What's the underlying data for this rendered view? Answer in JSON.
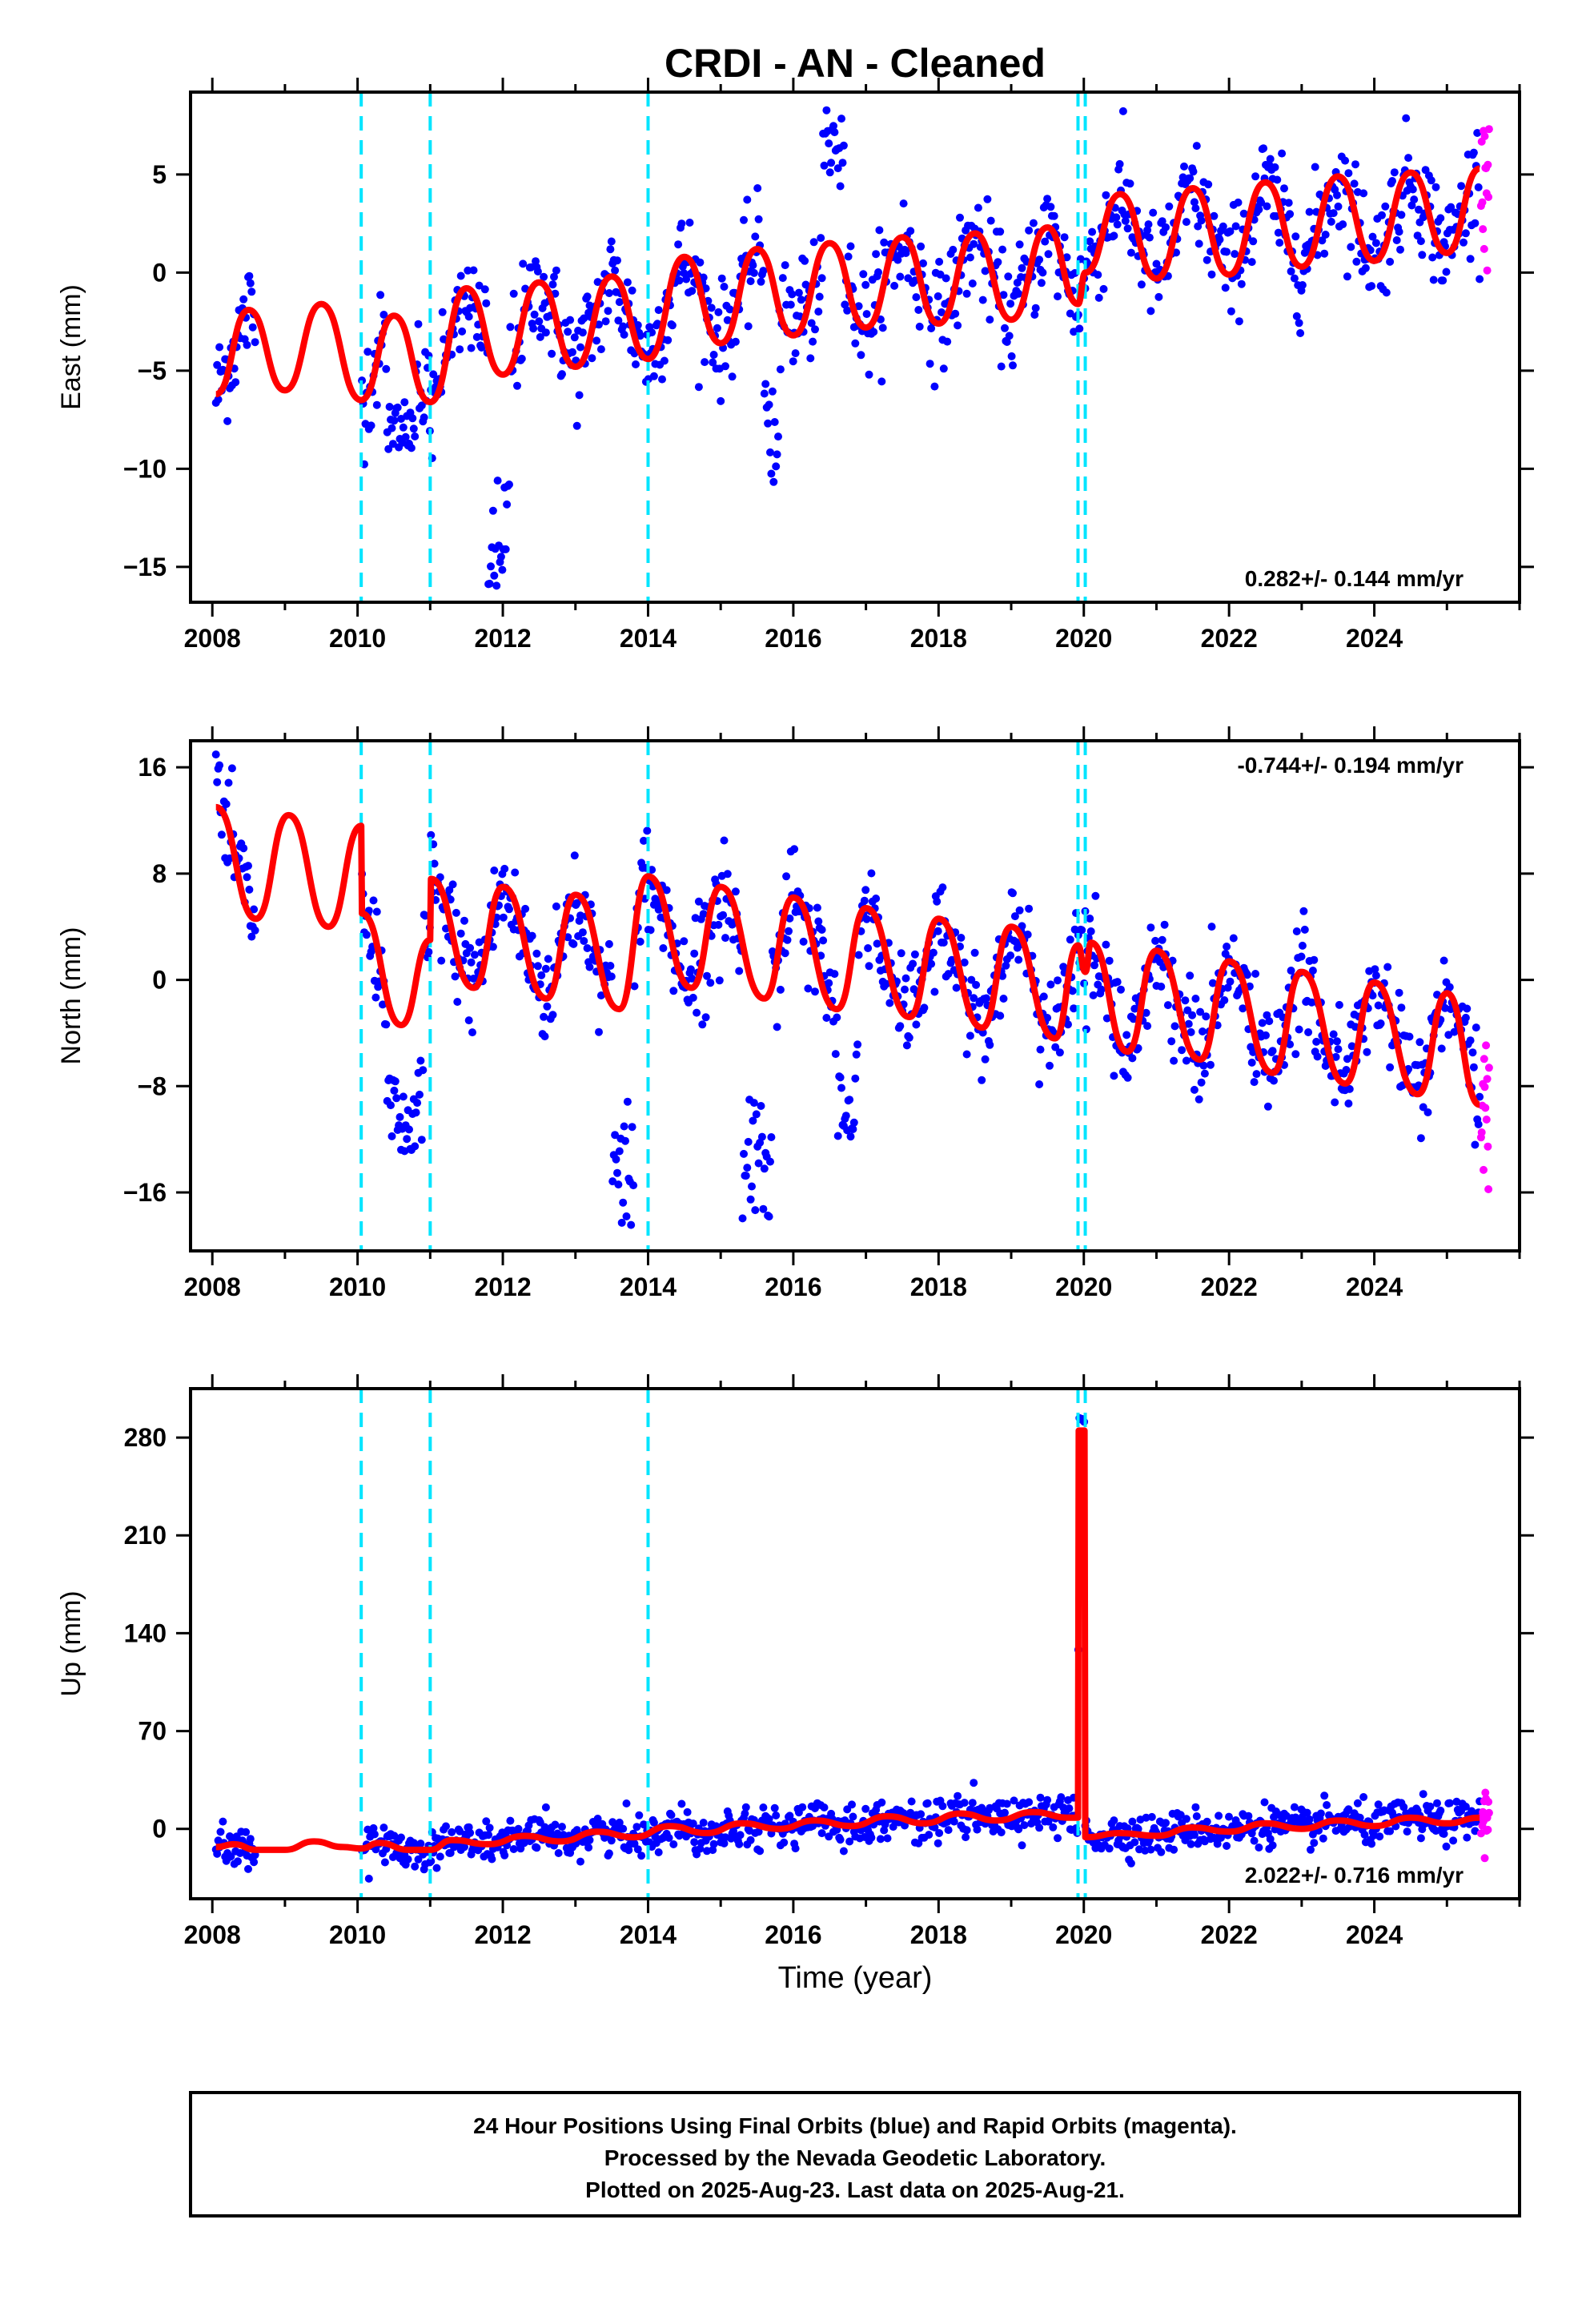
{
  "title": "CRDI  - AN - Cleaned",
  "xlabel": "Time (year)",
  "footer": {
    "line1": "24 Hour Positions Using Final Orbits (blue) and Rapid Orbits (magenta).",
    "line2": "Processed by the Nevada Geodetic Laboratory.",
    "line3": "Plotted on 2025-Aug-23. Last data on 2025-Aug-21."
  },
  "colors": {
    "final": "#0000ff",
    "rapid": "#ff00ff",
    "model": "#ff0000",
    "steps": "#00e5ff"
  },
  "chart_data": [
    {
      "type": "scatter",
      "component": "east",
      "ylabel": "East (mm)",
      "rate_label": "0.282+/- 0.144 mm/yr",
      "xlim": [
        2007.7,
        2026.0
      ],
      "ylim": [
        -16.8,
        9.2
      ],
      "x_ticks": [
        2008,
        2010,
        2012,
        2014,
        2016,
        2018,
        2020,
        2022,
        2024
      ],
      "y_ticks": [
        -15,
        -10,
        -5,
        0,
        5
      ],
      "step_epochs": [
        2010.05,
        2011.0,
        2014.0,
        2019.92,
        2020.02
      ],
      "data_span": [
        2008.05,
        2025.45
      ],
      "gaps": [
        [
          2008.6,
          2010.05
        ]
      ],
      "rapid_span": [
        2025.47,
        2025.58
      ],
      "model_points": [
        [
          2008.05,
          -6.2
        ],
        [
          2008.5,
          -1.9
        ],
        [
          2009.0,
          -6.0
        ],
        [
          2009.5,
          -1.6
        ],
        [
          2010.05,
          -6.5
        ],
        [
          2010.5,
          -2.2
        ],
        [
          2011.0,
          -6.6
        ],
        [
          2011.5,
          -0.8
        ],
        [
          2012.0,
          -5.2
        ],
        [
          2012.5,
          -0.5
        ],
        [
          2013.0,
          -4.8
        ],
        [
          2013.5,
          -0.2
        ],
        [
          2014.0,
          -4.4
        ],
        [
          2014.5,
          0.8
        ],
        [
          2015.0,
          -3.6
        ],
        [
          2015.5,
          1.2
        ],
        [
          2016.0,
          -3.2
        ],
        [
          2016.5,
          1.5
        ],
        [
          2017.0,
          -2.8
        ],
        [
          2017.5,
          1.8
        ],
        [
          2018.0,
          -2.6
        ],
        [
          2018.5,
          2.0
        ],
        [
          2019.0,
          -2.4
        ],
        [
          2019.5,
          2.3
        ],
        [
          2019.92,
          -1.6
        ],
        [
          2020.02,
          0.0
        ],
        [
          2020.5,
          4.0
        ],
        [
          2021.0,
          -0.3
        ],
        [
          2021.5,
          4.3
        ],
        [
          2022.0,
          -0.1
        ],
        [
          2022.5,
          4.6
        ],
        [
          2023.0,
          0.3
        ],
        [
          2023.5,
          4.9
        ],
        [
          2024.0,
          0.6
        ],
        [
          2024.5,
          5.1
        ],
        [
          2025.0,
          1.0
        ],
        [
          2025.45,
          5.3
        ]
      ],
      "scatter_noise": 1.4,
      "excursions": [
        [
          2011.8,
          2012.1,
          -16.0
        ],
        [
          2010.4,
          2010.8,
          -9.0
        ],
        [
          2015.6,
          2015.8,
          -11.0
        ],
        [
          2016.4,
          2016.7,
          8.5
        ]
      ]
    },
    {
      "type": "scatter",
      "component": "north",
      "ylabel": "North (mm)",
      "rate_label": "-0.744+/- 0.194 mm/yr",
      "xlim": [
        2007.7,
        2026.0
      ],
      "ylim": [
        -20.4,
        18.0
      ],
      "x_ticks": [
        2008,
        2010,
        2012,
        2014,
        2016,
        2018,
        2020,
        2022,
        2024
      ],
      "y_ticks": [
        -16,
        -8,
        0,
        8,
        16
      ],
      "step_epochs": [
        2010.05,
        2011.0,
        2014.0,
        2019.92,
        2020.02
      ],
      "data_span": [
        2008.05,
        2025.45
      ],
      "gaps": [
        [
          2008.6,
          2010.05
        ]
      ],
      "rapid_span": [
        2025.47,
        2025.58
      ],
      "model_points": [
        [
          2008.05,
          13.0
        ],
        [
          2008.6,
          4.6
        ],
        [
          2009.05,
          12.4
        ],
        [
          2009.6,
          4.0
        ],
        [
          2010.05,
          11.6
        ],
        [
          2010.06,
          5.0
        ],
        [
          2010.6,
          -3.4
        ],
        [
          2011.0,
          3.0
        ],
        [
          2011.01,
          7.6
        ],
        [
          2011.6,
          -0.6
        ],
        [
          2012.0,
          7.0
        ],
        [
          2012.6,
          -1.4
        ],
        [
          2013.0,
          6.4
        ],
        [
          2013.6,
          -2.2
        ],
        [
          2014.0,
          7.8
        ],
        [
          2014.6,
          -0.6
        ],
        [
          2015.0,
          7.0
        ],
        [
          2015.6,
          -1.4
        ],
        [
          2016.0,
          6.2
        ],
        [
          2016.6,
          -2.2
        ],
        [
          2017.0,
          5.4
        ],
        [
          2017.6,
          -2.8
        ],
        [
          2018.0,
          4.6
        ],
        [
          2018.6,
          -3.6
        ],
        [
          2019.0,
          4.0
        ],
        [
          2019.6,
          -4.4
        ],
        [
          2019.92,
          2.6
        ],
        [
          2020.02,
          0.6
        ],
        [
          2020.1,
          2.8
        ],
        [
          2020.6,
          -5.4
        ],
        [
          2021.0,
          2.2
        ],
        [
          2021.6,
          -6.0
        ],
        [
          2022.0,
          1.4
        ],
        [
          2022.6,
          -7.0
        ],
        [
          2023.0,
          0.6
        ],
        [
          2023.6,
          -7.8
        ],
        [
          2024.0,
          -0.2
        ],
        [
          2024.6,
          -8.6
        ],
        [
          2025.0,
          -1.0
        ],
        [
          2025.45,
          -9.4
        ]
      ],
      "scatter_noise": 2.0,
      "excursions": [
        [
          2010.4,
          2010.9,
          -13.0
        ],
        [
          2013.5,
          2013.8,
          -19.0
        ],
        [
          2015.3,
          2015.7,
          -18.0
        ],
        [
          2016.6,
          2016.9,
          -12.0
        ],
        [
          2008.05,
          2008.1,
          17.0
        ]
      ]
    },
    {
      "type": "scatter",
      "component": "up",
      "ylabel": "Up (mm)",
      "rate_label": "2.022+/- 0.716 mm/yr",
      "xlim": [
        2007.7,
        2026.0
      ],
      "ylim": [
        -50,
        315
      ],
      "x_ticks": [
        2008,
        2010,
        2012,
        2014,
        2016,
        2018,
        2020,
        2022,
        2024
      ],
      "y_ticks": [
        0,
        70,
        140,
        210,
        280
      ],
      "step_epochs": [
        2010.05,
        2011.0,
        2014.0,
        2019.92,
        2020.02
      ],
      "data_span": [
        2008.05,
        2025.45
      ],
      "gaps": [
        [
          2008.6,
          2010.05
        ]
      ],
      "rapid_span": [
        2025.47,
        2025.58
      ],
      "model_points": [
        [
          2008.05,
          -13
        ],
        [
          2008.3,
          -11
        ],
        [
          2008.6,
          -15
        ],
        [
          2009.0,
          -15
        ],
        [
          2009.4,
          -9
        ],
        [
          2009.8,
          -13
        ],
        [
          2010.05,
          -14
        ],
        [
          2010.3,
          -10
        ],
        [
          2010.7,
          -15
        ],
        [
          2011.0,
          -15
        ],
        [
          2011.3,
          -8
        ],
        [
          2011.8,
          -11
        ],
        [
          2012.3,
          -5
        ],
        [
          2012.8,
          -9
        ],
        [
          2013.3,
          -2
        ],
        [
          2013.8,
          -6
        ],
        [
          2014.3,
          2
        ],
        [
          2014.8,
          -3
        ],
        [
          2015.3,
          4
        ],
        [
          2015.8,
          0
        ],
        [
          2016.3,
          6
        ],
        [
          2016.8,
          2
        ],
        [
          2017.3,
          9
        ],
        [
          2017.8,
          4
        ],
        [
          2018.3,
          11
        ],
        [
          2018.8,
          6
        ],
        [
          2019.3,
          12
        ],
        [
          2019.8,
          8
        ],
        [
          2019.92,
          8
        ],
        [
          2019.93,
          285
        ],
        [
          2020.01,
          285
        ],
        [
          2020.02,
          -6
        ],
        [
          2020.5,
          -3
        ],
        [
          2021.0,
          -5
        ],
        [
          2021.5,
          1
        ],
        [
          2022.0,
          -2
        ],
        [
          2022.5,
          4
        ],
        [
          2023.0,
          0
        ],
        [
          2023.5,
          6
        ],
        [
          2024.0,
          2
        ],
        [
          2024.5,
          8
        ],
        [
          2025.0,
          4
        ],
        [
          2025.45,
          8
        ]
      ],
      "scatter_noise": 7.0,
      "excursions": [
        [
          2019.93,
          2020.01,
          295
        ]
      ]
    }
  ]
}
